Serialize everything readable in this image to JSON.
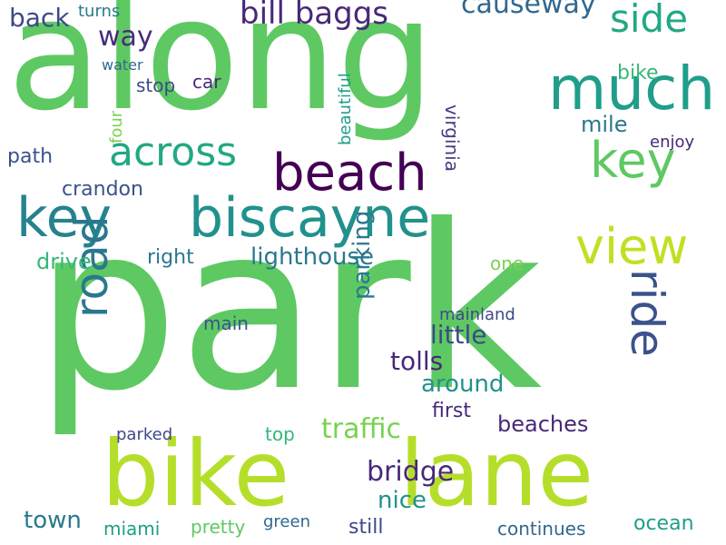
{
  "words": [
    {
      "text": "park",
      "color": "#5ec962"
    },
    {
      "text": "along",
      "color": "#5ec962"
    },
    {
      "text": "bike",
      "color": "#b5de2b"
    },
    {
      "text": "lane",
      "color": "#b5de2b"
    },
    {
      "text": "much",
      "color": "#1f9e89"
    },
    {
      "text": "key",
      "color": "#26828e"
    },
    {
      "text": "biscayne",
      "color": "#21918c"
    },
    {
      "text": "beach",
      "color": "#440154"
    },
    {
      "text": "view",
      "color": "#c2df23"
    },
    {
      "text": "ride",
      "color": "#3b528b"
    },
    {
      "text": "road",
      "color": "#2a788e"
    },
    {
      "text": "key",
      "color": "#5ec962"
    },
    {
      "text": "across",
      "color": "#22a884"
    },
    {
      "text": "side",
      "color": "#22a884"
    },
    {
      "text": "bill baggs",
      "color": "#482878"
    },
    {
      "text": "causeway",
      "color": "#31688e"
    },
    {
      "text": "back",
      "color": "#3e4989"
    },
    {
      "text": "turns",
      "color": "#2a788e"
    },
    {
      "text": "way",
      "color": "#472d7b"
    },
    {
      "text": "bike",
      "color": "#35b779"
    },
    {
      "text": "traffic",
      "color": "#7ad151"
    },
    {
      "text": "bridge",
      "color": "#482878"
    },
    {
      "text": "beaches",
      "color": "#482878"
    },
    {
      "text": "lighthouse",
      "color": "#2a788e"
    },
    {
      "text": "crandon",
      "color": "#3b528b"
    },
    {
      "text": "path",
      "color": "#3b528b"
    },
    {
      "text": "drive",
      "color": "#35b779"
    },
    {
      "text": "town",
      "color": "#2a788e"
    },
    {
      "text": "around",
      "color": "#21918c"
    },
    {
      "text": "little",
      "color": "#3e4989"
    },
    {
      "text": "tolls",
      "color": "#482878"
    },
    {
      "text": "parking",
      "color": "#2a788e"
    },
    {
      "text": "nice",
      "color": "#21918c"
    },
    {
      "text": "ocean",
      "color": "#1f9e89"
    },
    {
      "text": "still",
      "color": "#3e4989"
    },
    {
      "text": "continues",
      "color": "#31688e"
    },
    {
      "text": "miami",
      "color": "#1f9e89"
    },
    {
      "text": "virginia",
      "color": "#433e85"
    },
    {
      "text": "mile",
      "color": "#2a788e"
    },
    {
      "text": "enjoy",
      "color": "#482878"
    },
    {
      "text": "right",
      "color": "#2a788e"
    },
    {
      "text": "main",
      "color": "#3b528b"
    },
    {
      "text": "mainland",
      "color": "#3e4989"
    },
    {
      "text": "first",
      "color": "#482878"
    },
    {
      "text": "beautiful",
      "color": "#1f9e89"
    },
    {
      "text": "water",
      "color": "#31688e"
    },
    {
      "text": "four",
      "color": "#7ad151"
    },
    {
      "text": "car",
      "color": "#482878"
    },
    {
      "text": "stop",
      "color": "#3e4989"
    },
    {
      "text": "pretty",
      "color": "#5ec962"
    },
    {
      "text": "green",
      "color": "#31688e"
    },
    {
      "text": "one",
      "color": "#7ad151"
    },
    {
      "text": "parked",
      "color": "#3e4989"
    },
    {
      "text": "top",
      "color": "#35b779"
    }
  ]
}
